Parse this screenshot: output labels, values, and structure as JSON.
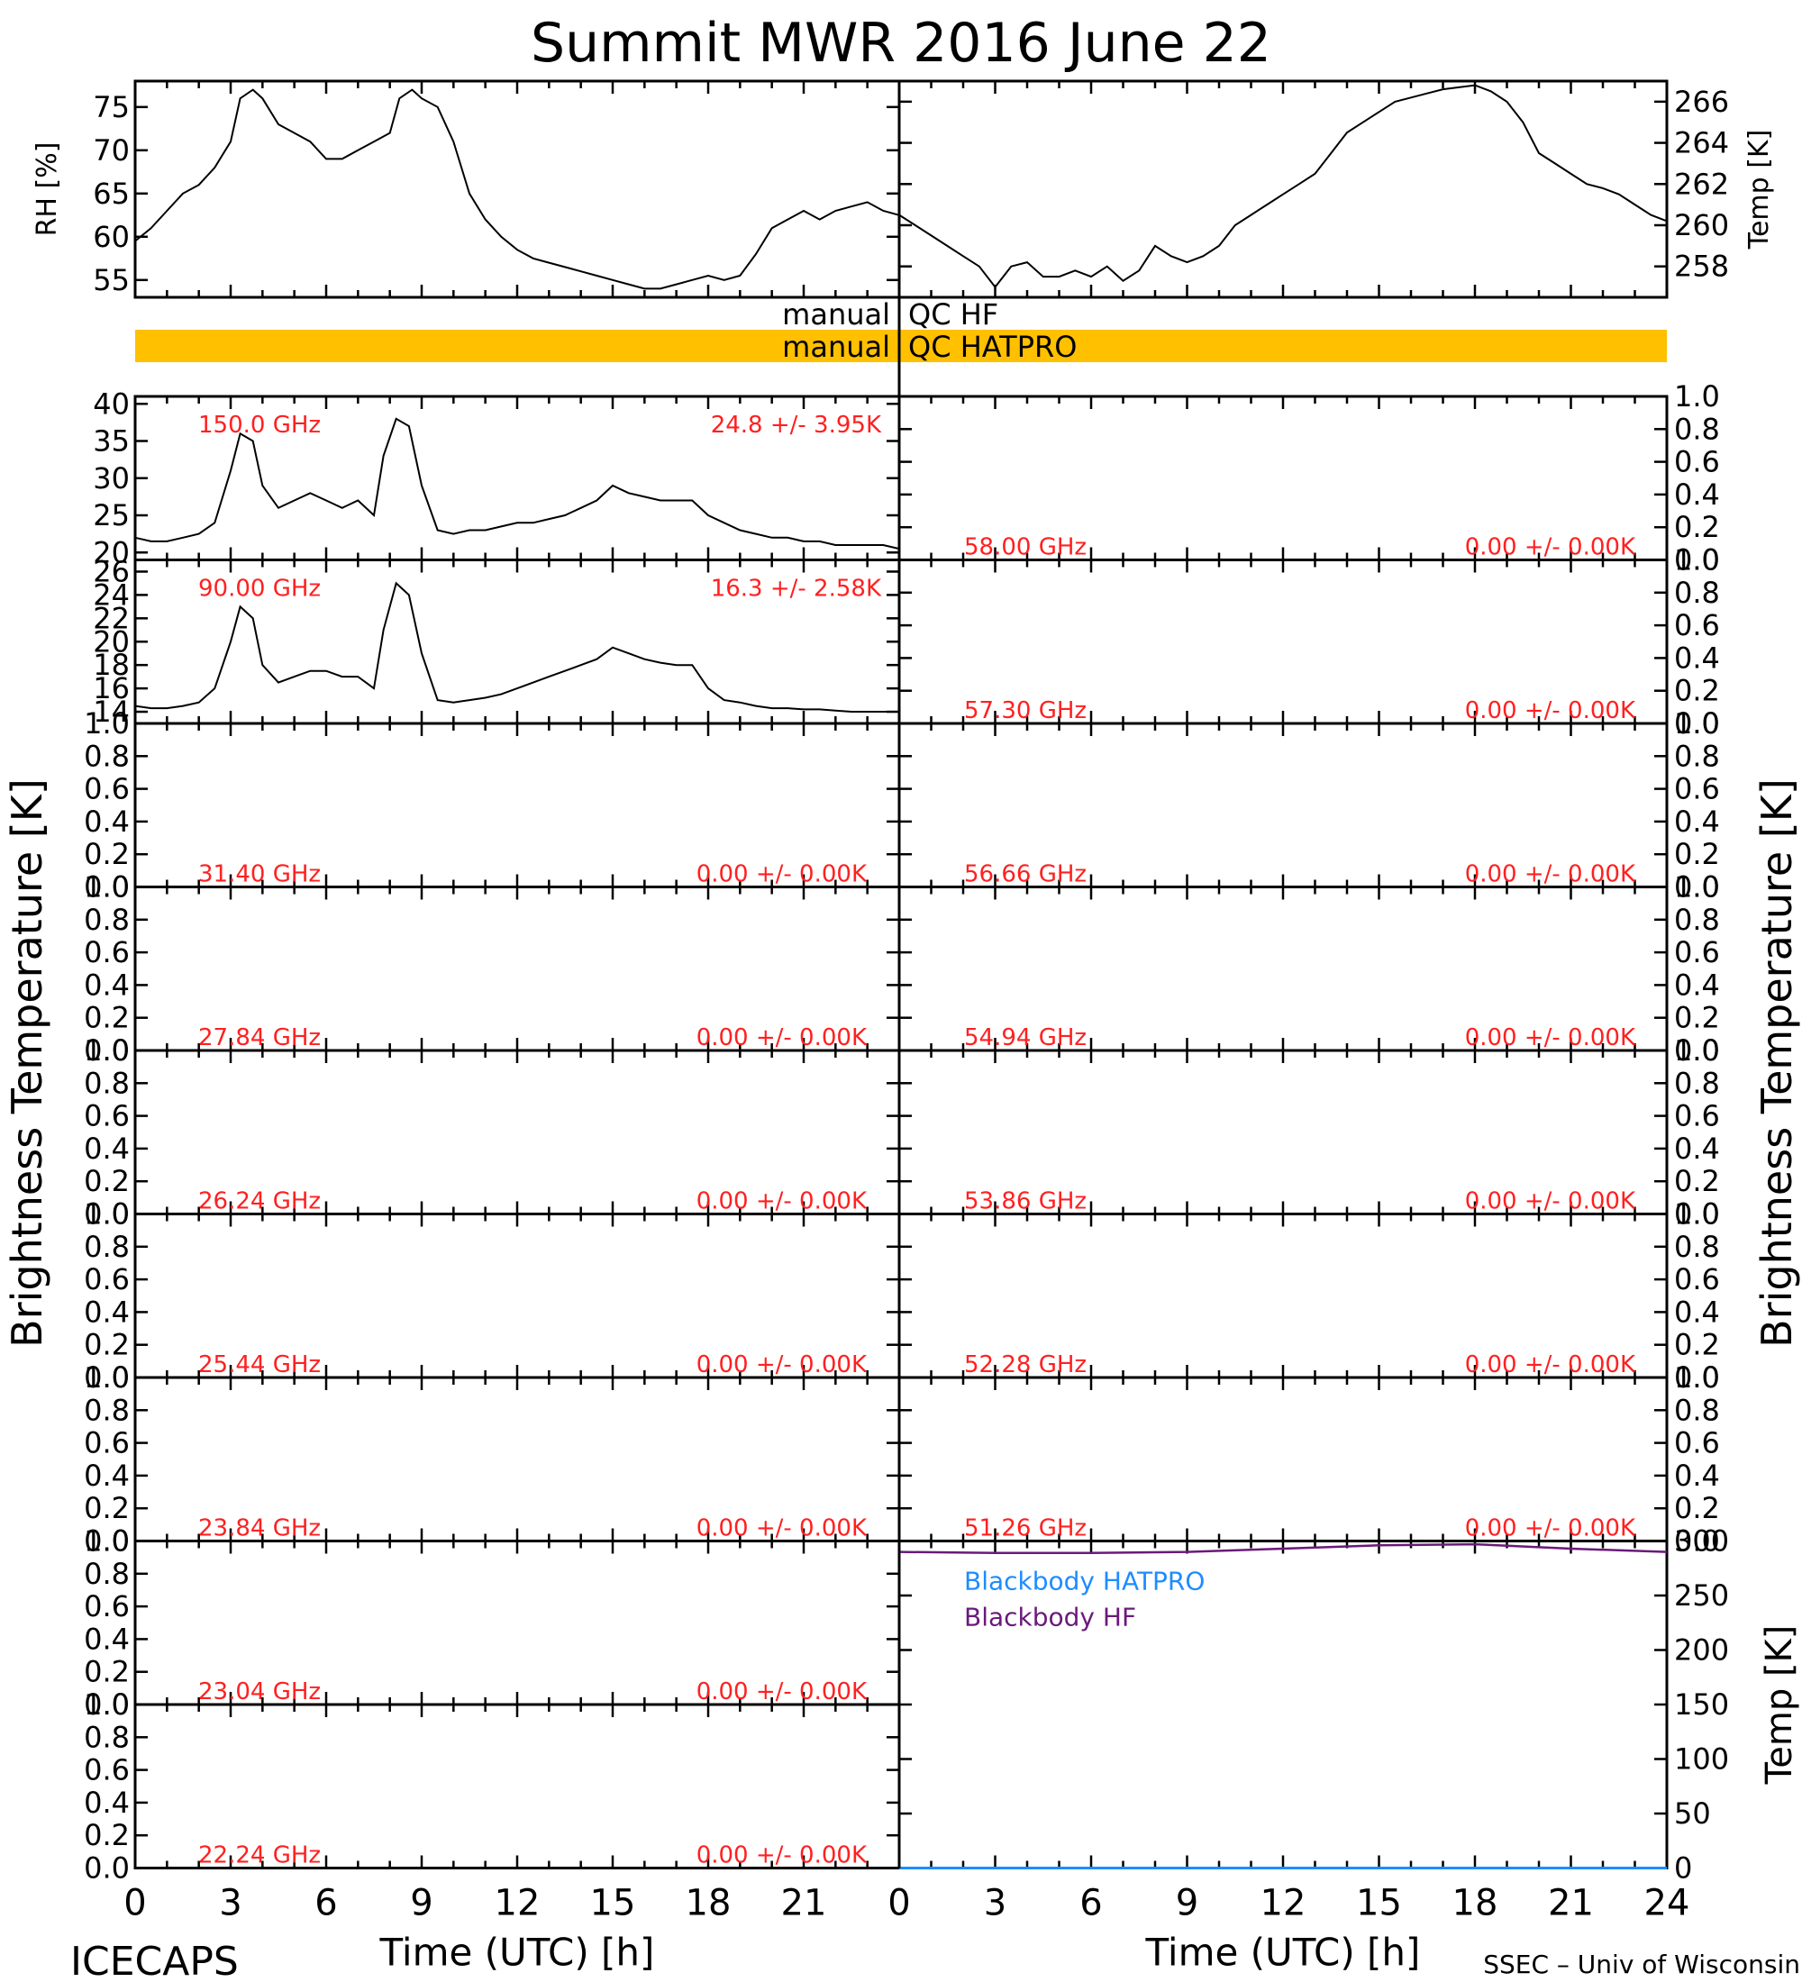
{
  "title": "Summit MWR 2016 June 22",
  "footer_left": "ICECAPS",
  "footer_right": "SSEC – Univ of Wisconsin",
  "x_axis_label": "Time (UTC) [h]",
  "left_ylabel": "Brightness Temperature [K]",
  "right_ylabel": "Brightness Temperature [K]",
  "qc": {
    "hf": "manual  QC HF",
    "hatpro_left": "manual",
    "hatpro_right": "QC HATPRO",
    "hf_left": "manual",
    "hf_right": "QC HF",
    "bar_color": "#ffc000"
  },
  "colors": {
    "red_label": "#ff2020",
    "trace": "#000000",
    "bb_hatpro": "#1e8cff",
    "bb_hf": "#6a1a7a"
  },
  "chart_data": [
    {
      "type": "line",
      "id": "rh",
      "ylabel": "RH [%]",
      "ylim": [
        53,
        78
      ],
      "yticks": [
        55,
        60,
        65,
        70,
        75
      ],
      "xlim": [
        0,
        24
      ],
      "x": [
        0,
        0.5,
        1,
        1.5,
        2,
        2.5,
        3,
        3.3,
        3.7,
        4,
        4.5,
        5,
        5.5,
        6,
        6.5,
        7,
        7.5,
        8,
        8.3,
        8.7,
        9,
        9.5,
        10,
        10.5,
        11,
        11.5,
        12,
        12.5,
        13,
        13.5,
        14,
        14.5,
        15,
        15.5,
        16,
        16.5,
        17,
        17.5,
        18,
        18.5,
        19,
        19.5,
        20,
        20.5,
        21,
        21.5,
        22,
        22.5,
        23,
        23.5,
        24
      ],
      "values": [
        59.5,
        61,
        63,
        65,
        66,
        68,
        71,
        76,
        77,
        76,
        73,
        72,
        71,
        69,
        69,
        70,
        71,
        72,
        76,
        77,
        76,
        75,
        71,
        65,
        62,
        60,
        58.5,
        57.5,
        57,
        56.5,
        56,
        55.5,
        55,
        54.5,
        54,
        54,
        54.5,
        55,
        55.5,
        55,
        55.5,
        58,
        61,
        62,
        63,
        62,
        63,
        63.5,
        64,
        63,
        62.5
      ]
    },
    {
      "type": "line",
      "id": "temp",
      "ylabel": "Temp [K]",
      "ylim": [
        256.5,
        267
      ],
      "yticks": [
        258,
        260,
        262,
        264,
        266
      ],
      "xlim": [
        0,
        24
      ],
      "x": [
        0,
        0.5,
        1,
        1.5,
        2,
        2.5,
        3,
        3.5,
        4,
        4.5,
        5,
        5.5,
        6,
        6.5,
        7,
        7.5,
        8,
        8.5,
        9,
        9.5,
        10,
        10.5,
        11,
        11.5,
        12,
        12.5,
        13,
        13.5,
        14,
        14.5,
        15,
        15.5,
        16,
        16.5,
        17,
        17.5,
        18,
        18.5,
        19,
        19.5,
        20,
        20.5,
        21,
        21.5,
        22,
        22.5,
        23,
        23.5,
        24
      ],
      "values": [
        260.5,
        260,
        259.5,
        259,
        258.5,
        258,
        257,
        258,
        258.2,
        257.5,
        257.5,
        257.8,
        257.5,
        258,
        257.3,
        257.8,
        259,
        258.5,
        258.2,
        258.5,
        259,
        260,
        260.5,
        261,
        261.5,
        262,
        262.5,
        263.5,
        264.5,
        265,
        265.5,
        266,
        266.2,
        266.4,
        266.6,
        266.7,
        266.8,
        266.5,
        266,
        265,
        263.5,
        263,
        262.5,
        262,
        261.8,
        261.5,
        261,
        260.5,
        260.2
      ]
    },
    {
      "type": "line",
      "id": "bt150",
      "side": "left",
      "freq_label": "150.0 GHz",
      "stats_label": "24.8 +/-  3.95K",
      "ylim": [
        19,
        41
      ],
      "yticks": [
        20,
        25,
        30,
        35,
        40
      ],
      "xlim": [
        0,
        24
      ],
      "x": [
        0,
        0.5,
        1,
        1.5,
        2,
        2.5,
        3,
        3.3,
        3.7,
        4,
        4.5,
        5,
        5.5,
        6,
        6.5,
        7,
        7.5,
        7.8,
        8.2,
        8.6,
        9,
        9.5,
        10,
        10.5,
        11,
        11.5,
        12,
        12.5,
        13,
        13.5,
        14,
        14.5,
        15,
        15.5,
        16,
        16.5,
        17,
        17.5,
        18,
        18.5,
        19,
        19.5,
        20,
        20.5,
        21,
        21.5,
        22,
        22.5,
        23,
        23.5,
        24
      ],
      "values": [
        22,
        21.5,
        21.5,
        22,
        22.5,
        24,
        31,
        36,
        35,
        29,
        26,
        27,
        28,
        27,
        26,
        27,
        25,
        33,
        38,
        37,
        29,
        23,
        22.5,
        23,
        23,
        23.5,
        24,
        24,
        24.5,
        25,
        26,
        27,
        29,
        28,
        27.5,
        27,
        27,
        27,
        25,
        24,
        23,
        22.5,
        22,
        22,
        21.5,
        21.5,
        21,
        21,
        21,
        21,
        20.5
      ]
    },
    {
      "type": "line",
      "id": "bt90",
      "side": "left",
      "freq_label": "90.00 GHz",
      "stats_label": "16.3 +/-  2.58K",
      "ylim": [
        13,
        27
      ],
      "yticks": [
        14,
        16,
        18,
        20,
        22,
        24,
        26
      ],
      "xlim": [
        0,
        24
      ],
      "x": [
        0,
        0.5,
        1,
        1.5,
        2,
        2.5,
        3,
        3.3,
        3.7,
        4,
        4.5,
        5,
        5.5,
        6,
        6.5,
        7,
        7.5,
        7.8,
        8.2,
        8.6,
        9,
        9.5,
        10,
        10.5,
        11,
        11.5,
        12,
        12.5,
        13,
        13.5,
        14,
        14.5,
        15,
        15.5,
        16,
        16.5,
        17,
        17.5,
        18,
        18.5,
        19,
        19.5,
        20,
        20.5,
        21,
        21.5,
        22,
        22.5,
        23,
        23.5,
        24
      ],
      "values": [
        14.5,
        14.3,
        14.3,
        14.5,
        14.8,
        16,
        20,
        23,
        22,
        18,
        16.5,
        17,
        17.5,
        17.5,
        17,
        17,
        16,
        21,
        25,
        24,
        19,
        15,
        14.8,
        15,
        15.2,
        15.5,
        16,
        16.5,
        17,
        17.5,
        18,
        18.5,
        19.5,
        19,
        18.5,
        18.2,
        18,
        18,
        16,
        15,
        14.8,
        14.5,
        14.3,
        14.3,
        14.2,
        14.2,
        14.1,
        14,
        14,
        14,
        14
      ]
    },
    {
      "type": "line",
      "id": "bt3140",
      "side": "left",
      "freq_label": "31.40 GHz",
      "stats_label": "0.00 +/-  0.00K",
      "ylim": [
        0,
        1
      ],
      "values": []
    },
    {
      "type": "line",
      "id": "bt2784",
      "side": "left",
      "freq_label": "27.84 GHz",
      "stats_label": "0.00 +/-  0.00K",
      "ylim": [
        0,
        1
      ],
      "values": []
    },
    {
      "type": "line",
      "id": "bt2624",
      "side": "left",
      "freq_label": "26.24 GHz",
      "stats_label": "0.00 +/-  0.00K",
      "ylim": [
        0,
        1
      ],
      "values": []
    },
    {
      "type": "line",
      "id": "bt2544",
      "side": "left",
      "freq_label": "25.44 GHz",
      "stats_label": "0.00 +/-  0.00K",
      "ylim": [
        0,
        1
      ],
      "values": []
    },
    {
      "type": "line",
      "id": "bt2384",
      "side": "left",
      "freq_label": "23.84 GHz",
      "stats_label": "0.00 +/-  0.00K",
      "ylim": [
        0,
        1
      ],
      "values": []
    },
    {
      "type": "line",
      "id": "bt2304",
      "side": "left",
      "freq_label": "23.04 GHz",
      "stats_label": "0.00 +/-  0.00K",
      "ylim": [
        0,
        1
      ],
      "values": []
    },
    {
      "type": "line",
      "id": "bt2224",
      "side": "left",
      "freq_label": "22.24 GHz",
      "stats_label": "0.00 +/-  0.00K",
      "ylim": [
        0,
        1
      ],
      "values": []
    },
    {
      "type": "line",
      "id": "bt5800",
      "side": "right",
      "freq_label": "58.00 GHz",
      "stats_label": "0.00 +/-  0.00K",
      "ylim": [
        0,
        1
      ],
      "values": []
    },
    {
      "type": "line",
      "id": "bt5730",
      "side": "right",
      "freq_label": "57.30 GHz",
      "stats_label": "0.00 +/-  0.00K",
      "ylim": [
        0,
        1
      ],
      "values": []
    },
    {
      "type": "line",
      "id": "bt5666",
      "side": "right",
      "freq_label": "56.66 GHz",
      "stats_label": "0.00 +/-  0.00K",
      "ylim": [
        0,
        1
      ],
      "values": []
    },
    {
      "type": "line",
      "id": "bt5494",
      "side": "right",
      "freq_label": "54.94 GHz",
      "stats_label": "0.00 +/-  0.00K",
      "ylim": [
        0,
        1
      ],
      "values": []
    },
    {
      "type": "line",
      "id": "bt5386",
      "side": "right",
      "freq_label": "53.86 GHz",
      "stats_label": "0.00 +/-  0.00K",
      "ylim": [
        0,
        1
      ],
      "values": []
    },
    {
      "type": "line",
      "id": "bt5228",
      "side": "right",
      "freq_label": "52.28 GHz",
      "stats_label": "0.00 +/-  0.00K",
      "ylim": [
        0,
        1
      ],
      "values": []
    },
    {
      "type": "line",
      "id": "bt5126",
      "side": "right",
      "freq_label": "51.26 GHz",
      "stats_label": "0.00 +/-  0.00K",
      "ylim": [
        0,
        1
      ],
      "values": []
    },
    {
      "type": "line",
      "id": "blackbody",
      "ylabel": "Temp [K]",
      "ylim": [
        0,
        300
      ],
      "yticks": [
        0,
        50,
        100,
        150,
        200,
        250,
        300
      ],
      "xlim": [
        0,
        24
      ],
      "series": [
        {
          "name": "Blackbody HATPRO",
          "x": [
            0,
            24
          ],
          "values": [
            0,
            0
          ]
        },
        {
          "name": "Blackbody HF",
          "x": [
            0,
            3,
            6,
            9,
            12,
            15,
            18,
            21,
            24
          ],
          "values": [
            290,
            289,
            289,
            290,
            293,
            296,
            297,
            293,
            290
          ]
        }
      ]
    }
  ],
  "x_ticks": [
    0,
    3,
    6,
    9,
    12,
    15,
    18,
    21,
    24
  ],
  "x_ticks_left_bottom": [
    0,
    3,
    6,
    9,
    12,
    15,
    18,
    21
  ],
  "small_yticks": [
    0.0,
    0.2,
    0.4,
    0.6,
    0.8,
    1.0
  ]
}
